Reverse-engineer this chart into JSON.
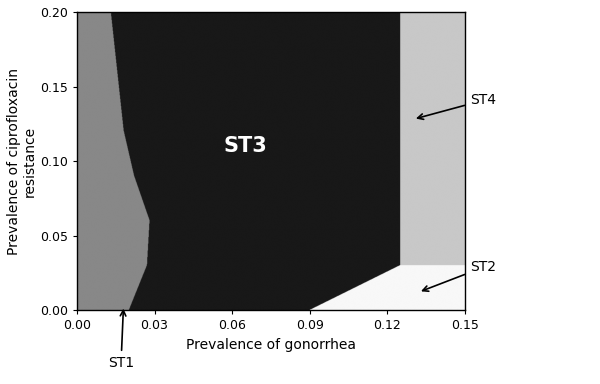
{
  "xlim": [
    0.0,
    0.15
  ],
  "ylim": [
    0.0,
    0.2
  ],
  "xticks": [
    0.0,
    0.03,
    0.06,
    0.09,
    0.12,
    0.15
  ],
  "yticks": [
    0.0,
    0.05,
    0.1,
    0.15,
    0.2
  ],
  "xlabel": "Prevalence of gonorrhea",
  "ylabel": "Prevalence of ciprofloxacin\nresistance",
  "color_ST1": "#888888",
  "color_ST2": "#f8f8f8",
  "color_ST3": "#181818",
  "color_ST4": "#c8c8c8",
  "label_ST3": "ST3",
  "label_ST1": "ST1",
  "label_ST2": "ST2",
  "label_ST4": "ST4",
  "figsize": [
    6.0,
    3.84
  ],
  "dpi": 100
}
